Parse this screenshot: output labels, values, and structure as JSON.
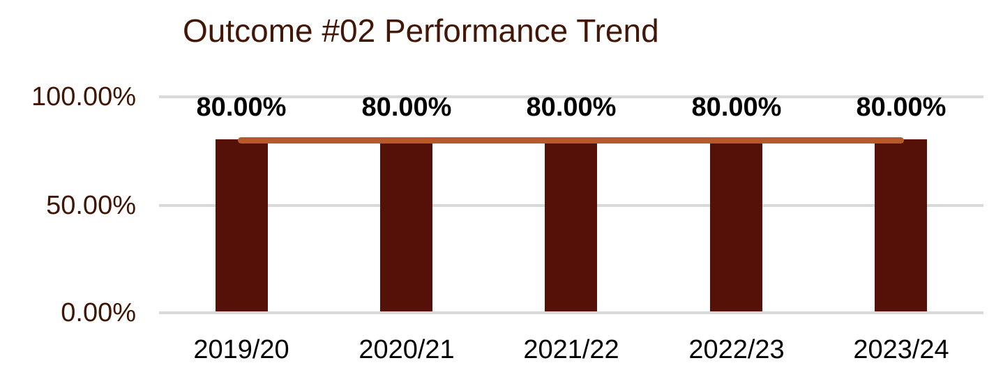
{
  "chart_data": {
    "type": "bar",
    "title": "Outcome #02 Performance Trend",
    "categories": [
      "2019/20",
      "2020/21",
      "2021/22",
      "2022/23",
      "2023/24"
    ],
    "series": [
      {
        "name": "performance-bars",
        "type": "bar",
        "values": [
          80,
          80,
          80,
          80,
          80
        ]
      },
      {
        "name": "trend-line",
        "type": "line",
        "values": [
          80,
          80,
          80,
          80,
          80
        ]
      }
    ],
    "data_labels": [
      "80.00%",
      "80.00%",
      "80.00%",
      "80.00%",
      "80.00%"
    ],
    "ylabel": "",
    "xlabel": "",
    "ylim": [
      0,
      100
    ],
    "y_ticks": [
      "0.00%",
      "50.00%",
      "100.00%"
    ],
    "grid": true,
    "legend": false,
    "colors": {
      "bar_fill": "#551008",
      "line_stroke": "#B75A2B",
      "title_text": "#421708",
      "axis_tick_text": "#3F1505",
      "data_label_text": "#000000",
      "category_label_text": "#000000",
      "gridline": "#D9D9D9",
      "background": "#FFFFFF"
    }
  }
}
